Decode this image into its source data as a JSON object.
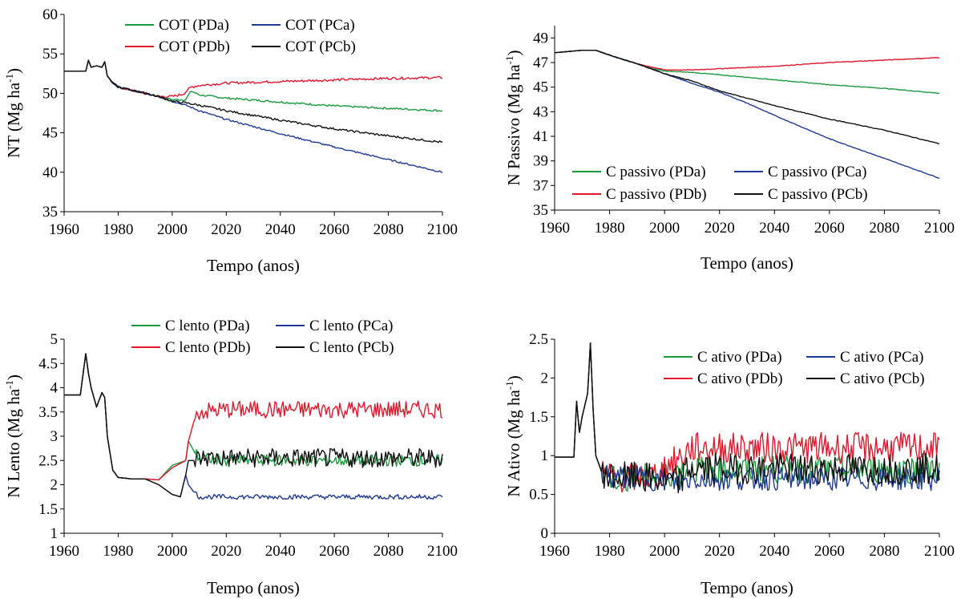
{
  "colors": {
    "PDa": "#1a9a3e",
    "PDb": "#e3162b",
    "PCa": "#1f3a93",
    "PCb": "#111111",
    "axis": "#000000"
  },
  "chart_data": [
    {
      "type": "line",
      "ylabel": "NT (Mg ha",
      "ylabel_sup": "-1",
      "ylabel_end": ")",
      "xlabel": "Tempo (anos)",
      "xlim": [
        1960,
        2100
      ],
      "ylim": [
        35,
        60
      ],
      "xticks": [
        "1960",
        "1980",
        "2000",
        "2020",
        "2040",
        "2060",
        "2080",
        "2100"
      ],
      "yticks": [
        "35",
        "40",
        "45",
        "50",
        "55",
        "60"
      ],
      "legend_position": "top",
      "series": [
        {
          "name": "COT (PDa)",
          "key": "PDa",
          "x": [
            1960,
            1968,
            1969,
            1970,
            1972,
            1974,
            1975,
            1976,
            1978,
            1980,
            1985,
            1990,
            1995,
            2000,
            2005,
            2007,
            2010,
            2020,
            2040,
            2060,
            2080,
            2100
          ],
          "y": [
            52.8,
            52.8,
            54.2,
            53.3,
            53.5,
            53.3,
            54.0,
            52.2,
            51.3,
            50.8,
            50.4,
            50.0,
            49.6,
            49.2,
            49.2,
            50.3,
            49.8,
            49.4,
            48.9,
            48.4,
            48.1,
            47.8
          ]
        },
        {
          "name": "COT (PDb)",
          "key": "PDb",
          "x": [
            1960,
            1968,
            1969,
            1970,
            1972,
            1974,
            1975,
            1976,
            1978,
            1980,
            1985,
            1990,
            1995,
            2000,
            2004,
            2007,
            2010,
            2020,
            2040,
            2060,
            2080,
            2100
          ],
          "y": [
            52.8,
            52.8,
            54.2,
            53.3,
            53.5,
            53.3,
            54.0,
            52.2,
            51.3,
            50.8,
            50.4,
            50.0,
            49.6,
            49.6,
            49.9,
            50.8,
            51.0,
            51.3,
            51.5,
            51.7,
            51.9,
            52.0
          ]
        },
        {
          "name": "COT (PCa)",
          "key": "PCa",
          "x": [
            1960,
            1968,
            1969,
            1970,
            1972,
            1974,
            1975,
            1976,
            1978,
            1980,
            1985,
            1990,
            1995,
            2000,
            2005,
            2010,
            2020,
            2040,
            2060,
            2080,
            2100
          ],
          "y": [
            52.8,
            52.8,
            54.2,
            53.3,
            53.5,
            53.3,
            54.0,
            52.2,
            51.3,
            50.8,
            50.4,
            50.0,
            49.6,
            49.0,
            48.5,
            47.8,
            46.7,
            44.9,
            43.2,
            41.6,
            40.0
          ]
        },
        {
          "name": "COT (PCb)",
          "key": "PCb",
          "x": [
            1960,
            1968,
            1969,
            1970,
            1972,
            1974,
            1975,
            1976,
            1978,
            1980,
            1985,
            1990,
            1995,
            2000,
            2005,
            2010,
            2020,
            2040,
            2060,
            2080,
            2100
          ],
          "y": [
            52.8,
            52.8,
            54.2,
            53.3,
            53.5,
            53.3,
            54.0,
            52.2,
            51.3,
            50.8,
            50.4,
            50.0,
            49.6,
            49.0,
            48.8,
            48.5,
            47.8,
            46.6,
            45.5,
            44.6,
            43.8
          ]
        }
      ]
    },
    {
      "type": "line",
      "ylabel": "N Passivo (Mg ha",
      "ylabel_sup": "-1",
      "ylabel_end": ")",
      "xlabel": "Tempo (anos)",
      "xlim": [
        1960,
        2100
      ],
      "ylim": [
        35,
        50
      ],
      "xticks": [
        "1960",
        "1980",
        "2000",
        "2020",
        "2040",
        "2060",
        "2080",
        "2100"
      ],
      "yticks": [
        "35",
        "37",
        "39",
        "41",
        "43",
        "45",
        "47",
        "49"
      ],
      "legend_position": "bottom",
      "series": [
        {
          "name": "C passivo (PDa)",
          "key": "PDa",
          "x": [
            1960,
            1970,
            1975,
            1980,
            1990,
            1998,
            2000,
            2010,
            2020,
            2040,
            2060,
            2080,
            2100
          ],
          "y": [
            47.8,
            48.0,
            48.0,
            47.6,
            46.9,
            46.4,
            46.3,
            46.2,
            46.0,
            45.6,
            45.2,
            44.9,
            44.5
          ]
        },
        {
          "name": "C passivo (PDb)",
          "key": "PDb",
          "x": [
            1960,
            1970,
            1975,
            1980,
            1990,
            1998,
            2000,
            2010,
            2020,
            2040,
            2060,
            2080,
            2100
          ],
          "y": [
            47.8,
            48.0,
            48.0,
            47.6,
            46.9,
            46.5,
            46.4,
            46.4,
            46.5,
            46.7,
            47.0,
            47.2,
            47.4
          ]
        },
        {
          "name": "C passivo (PCa)",
          "key": "PCa",
          "x": [
            1960,
            1970,
            1975,
            1980,
            1990,
            2000,
            2010,
            2020,
            2030,
            2040,
            2060,
            2080,
            2100
          ],
          "y": [
            47.8,
            48.0,
            48.0,
            47.6,
            46.9,
            46.1,
            45.3,
            44.6,
            43.7,
            42.7,
            40.8,
            39.2,
            37.6
          ]
        },
        {
          "name": "C passivo (PCb)",
          "key": "PCb",
          "x": [
            1960,
            1970,
            1975,
            1980,
            1990,
            2000,
            2010,
            2020,
            2040,
            2060,
            2080,
            2100
          ],
          "y": [
            47.8,
            48.0,
            48.0,
            47.6,
            46.9,
            46.1,
            45.5,
            44.7,
            43.5,
            42.4,
            41.5,
            40.4
          ]
        }
      ]
    },
    {
      "type": "line",
      "ylabel": "N Lento (Mg ha",
      "ylabel_sup": "-1",
      "ylabel_end": ")",
      "xlabel": "Tempo (anos)",
      "xlim": [
        1960,
        2100
      ],
      "ylim": [
        1,
        5
      ],
      "xticks": [
        "1960",
        "1980",
        "2000",
        "2020",
        "2040",
        "2060",
        "2080",
        "2100"
      ],
      "yticks": [
        "1",
        "1.5",
        "2",
        "2.5",
        "3",
        "3.5",
        "4",
        "4.5",
        "5"
      ],
      "legend_position": "top",
      "series": [
        {
          "name": "C lento (PDa)",
          "key": "PDa",
          "x": [
            1960,
            1966,
            1968,
            1969,
            1970,
            1972,
            1974,
            1975,
            1976,
            1978,
            1980,
            1985,
            1990,
            1995,
            2000,
            2005,
            2006,
            2008,
            2010,
            2020,
            2040,
            2060,
            2080,
            2100
          ],
          "y": [
            3.85,
            3.85,
            4.7,
            4.3,
            4.0,
            3.6,
            3.9,
            3.8,
            3.0,
            2.3,
            2.15,
            2.12,
            2.12,
            2.1,
            2.4,
            2.5,
            2.9,
            2.7,
            2.55,
            2.5,
            2.5,
            2.5,
            2.5,
            2.5
          ]
        },
        {
          "name": "C lento (PDb)",
          "key": "PDb",
          "x": [
            1960,
            1966,
            1968,
            1969,
            1970,
            1972,
            1974,
            1975,
            1976,
            1978,
            1980,
            1985,
            1990,
            1995,
            2000,
            2005,
            2006,
            2008,
            2010,
            2020,
            2040,
            2060,
            2080,
            2100
          ],
          "y": [
            3.85,
            3.85,
            4.7,
            4.3,
            4.0,
            3.6,
            3.9,
            3.8,
            3.0,
            2.3,
            2.15,
            2.12,
            2.12,
            2.1,
            2.35,
            2.5,
            2.9,
            3.3,
            3.5,
            3.55,
            3.55,
            3.55,
            3.55,
            3.55
          ]
        },
        {
          "name": "C lento (PCa)",
          "key": "PCa",
          "x": [
            1960,
            1966,
            1968,
            1969,
            1970,
            1972,
            1974,
            1975,
            1976,
            1978,
            1980,
            1985,
            1990,
            1995,
            2000,
            2003,
            2005,
            2006,
            2008,
            2010,
            2020,
            2040,
            2060,
            2080,
            2100
          ],
          "y": [
            3.85,
            3.85,
            4.7,
            4.3,
            4.0,
            3.6,
            3.9,
            3.8,
            3.0,
            2.3,
            2.15,
            2.12,
            2.12,
            2.0,
            1.8,
            1.75,
            2.2,
            2.0,
            1.85,
            1.75,
            1.75,
            1.75,
            1.75,
            1.75,
            1.75
          ]
        },
        {
          "name": "C lento (PCb)",
          "key": "PCb",
          "x": [
            1960,
            1966,
            1968,
            1969,
            1970,
            1972,
            1974,
            1975,
            1976,
            1978,
            1980,
            1985,
            1990,
            1995,
            2000,
            2003,
            2005,
            2006,
            2008,
            2010,
            2020,
            2040,
            2060,
            2080,
            2100
          ],
          "y": [
            3.85,
            3.85,
            4.7,
            4.3,
            4.0,
            3.6,
            3.9,
            3.8,
            3.0,
            2.3,
            2.15,
            2.12,
            2.12,
            2.0,
            1.8,
            1.75,
            2.2,
            2.5,
            2.5,
            2.55,
            2.55,
            2.55,
            2.55,
            2.55,
            2.55
          ]
        }
      ]
    },
    {
      "type": "line",
      "ylabel": "N Ativo (Mg ha",
      "ylabel_sup": "-1",
      "ylabel_end": ")",
      "xlabel": "Tempo (anos)",
      "xlim": [
        1960,
        2100
      ],
      "ylim": [
        0,
        2.5
      ],
      "xticks": [
        "1960",
        "1980",
        "2000",
        "2020",
        "2040",
        "2060",
        "2080",
        "2100"
      ],
      "yticks": [
        "0",
        "0.5",
        "1",
        "1.5",
        "2",
        "2.5"
      ],
      "legend_position": "top-right",
      "series": [
        {
          "name": "C ativo (PDa)",
          "key": "PDa",
          "x": [
            1960,
            1967,
            1968,
            1969,
            1970,
            1972,
            1973,
            1974,
            1975,
            1977,
            1980,
            1990,
            1998,
            2000,
            2005,
            2010,
            2020,
            2040,
            2060,
            2080,
            2100
          ],
          "y": [
            0.98,
            0.98,
            1.7,
            1.3,
            1.5,
            1.8,
            2.45,
            1.6,
            1.0,
            0.8,
            0.72,
            0.72,
            0.72,
            0.75,
            0.8,
            0.82,
            0.82,
            0.82,
            0.82,
            0.82,
            0.82
          ]
        },
        {
          "name": "C ativo (PDb)",
          "key": "PDb",
          "x": [
            1960,
            1967,
            1968,
            1969,
            1970,
            1972,
            1973,
            1974,
            1975,
            1977,
            1980,
            1990,
            1998,
            2000,
            2005,
            2008,
            2010,
            2020,
            2040,
            2060,
            2080,
            2100
          ],
          "y": [
            0.98,
            0.98,
            1.7,
            1.3,
            1.5,
            1.8,
            2.45,
            1.6,
            1.0,
            0.8,
            0.72,
            0.72,
            0.75,
            0.85,
            0.95,
            1.05,
            1.1,
            1.1,
            1.1,
            1.1,
            1.1,
            1.1
          ]
        },
        {
          "name": "C ativo (PCa)",
          "key": "PCa",
          "x": [
            1960,
            1967,
            1968,
            1969,
            1970,
            1972,
            1973,
            1974,
            1975,
            1977,
            1980,
            1990,
            2000,
            2005,
            2008,
            2010,
            2020,
            2040,
            2060,
            2080,
            2100
          ],
          "y": [
            0.98,
            0.98,
            1.7,
            1.3,
            1.5,
            1.8,
            2.45,
            1.6,
            1.0,
            0.8,
            0.72,
            0.72,
            0.68,
            0.65,
            0.68,
            0.7,
            0.7,
            0.7,
            0.7,
            0.7,
            0.7
          ]
        },
        {
          "name": "C ativo (PCb)",
          "key": "PCb",
          "x": [
            1960,
            1967,
            1968,
            1969,
            1970,
            1972,
            1973,
            1974,
            1975,
            1977,
            1980,
            1990,
            2000,
            2005,
            2008,
            2010,
            2020,
            2040,
            2060,
            2080,
            2100
          ],
          "y": [
            0.98,
            0.98,
            1.7,
            1.3,
            1.5,
            1.8,
            2.45,
            1.6,
            1.0,
            0.8,
            0.72,
            0.72,
            0.68,
            0.65,
            0.8,
            0.83,
            0.83,
            0.83,
            0.83,
            0.83,
            0.83
          ]
        }
      ]
    }
  ]
}
